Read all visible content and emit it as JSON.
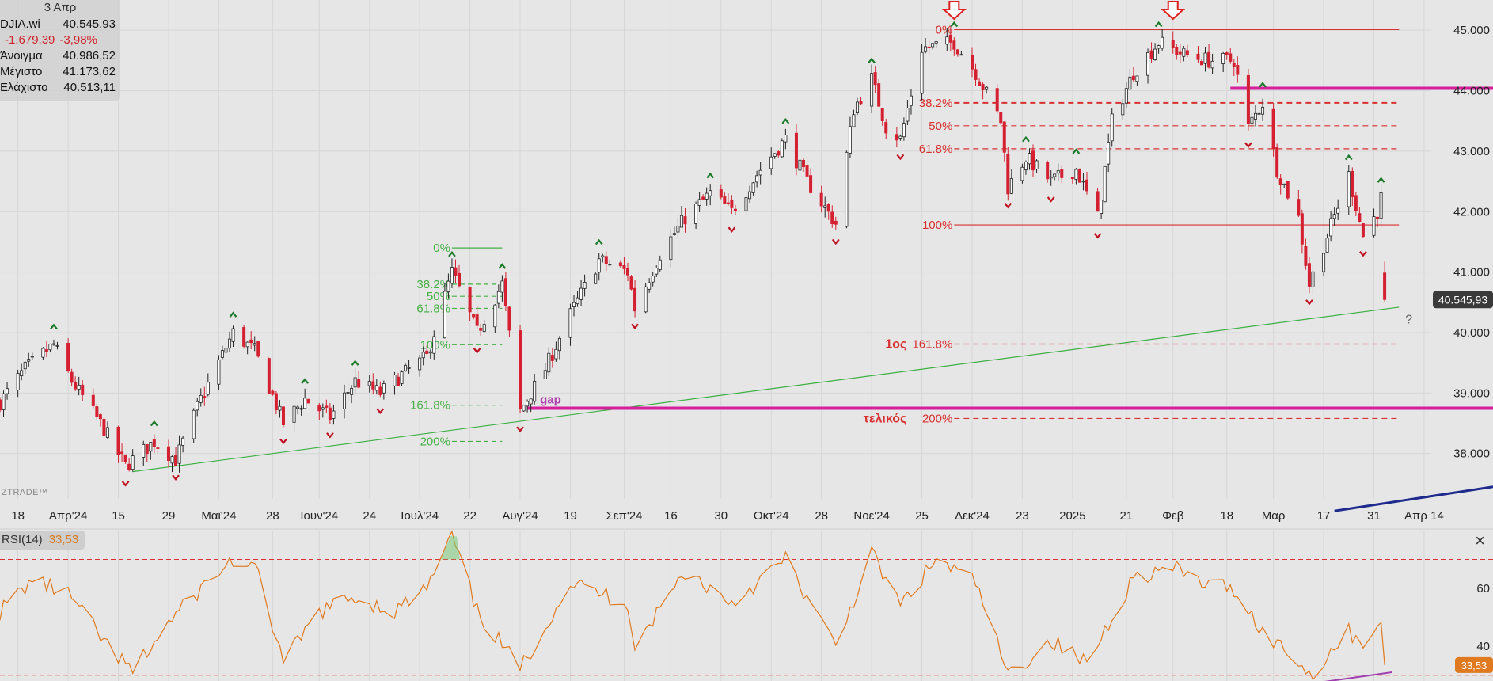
{
  "info_panel": {
    "date": "3 Απρ",
    "symbol": "DJIA.wi",
    "last": "40.545,93",
    "change": "-1.679,39",
    "change_pct": "-3,98%",
    "open_label": "Άνοιγμα",
    "open": "40.986,52",
    "high_label": "Μέγιστο",
    "high": "41.173,62",
    "low_label": "Ελάχιστο",
    "low": "40.513,11"
  },
  "watermark": "ZTRADE™",
  "rsi_panel": {
    "label": "RSI(14)",
    "value": "33,53",
    "close_icon": "×"
  },
  "colors": {
    "up": "#ffffff",
    "down": "#d42030",
    "fib_green": "#43b043",
    "fib_red": "#d93030",
    "magenta": "#d4209c",
    "trend_green": "#3cb043",
    "navy": "#1e2a8c",
    "rsi": "#e07a20"
  },
  "chart_data": [
    {
      "type": "candlestick",
      "title": "",
      "y_axis": {
        "min": 37250,
        "max": 45500,
        "ticks": [
          38000,
          39000,
          40000,
          41000,
          42000,
          43000,
          44000,
          45000
        ],
        "tick_labels": [
          "38.000",
          "39.000",
          "40.000",
          "41.000",
          "42.000",
          "43.000",
          "44.000",
          "45.000"
        ]
      },
      "x_axis": {
        "start": "2024-03-13",
        "end": "2025-04-16",
        "ticks": [
          {
            "date": "2024-03-18",
            "label": "18"
          },
          {
            "date": "2024-04-01",
            "label": "Απρ'24"
          },
          {
            "date": "2024-04-15",
            "label": "15"
          },
          {
            "date": "2024-04-29",
            "label": "29"
          },
          {
            "date": "2024-05-13",
            "label": "Μαϊ'24"
          },
          {
            "date": "2024-05-28",
            "label": "28"
          },
          {
            "date": "2024-06-10",
            "label": "Ιουν'24"
          },
          {
            "date": "2024-06-24",
            "label": "24"
          },
          {
            "date": "2024-07-08",
            "label": "Ιουλ'24"
          },
          {
            "date": "2024-07-22",
            "label": "22"
          },
          {
            "date": "2024-08-05",
            "label": "Αυγ'24"
          },
          {
            "date": "2024-08-19",
            "label": "19"
          },
          {
            "date": "2024-09-03",
            "label": "Σεπ'24"
          },
          {
            "date": "2024-09-16",
            "label": "16"
          },
          {
            "date": "2024-09-30",
            "label": "30"
          },
          {
            "date": "2024-10-14",
            "label": "Οκτ'24"
          },
          {
            "date": "2024-10-28",
            "label": "28"
          },
          {
            "date": "2024-11-11",
            "label": "Νοε'24"
          },
          {
            "date": "2024-11-25",
            "label": "25"
          },
          {
            "date": "2024-12-09",
            "label": "Δεκ'24"
          },
          {
            "date": "2024-12-23",
            "label": "23"
          },
          {
            "date": "2025-01-06",
            "label": "2025"
          },
          {
            "date": "2025-01-21",
            "label": "21"
          },
          {
            "date": "2025-02-03",
            "label": "Φεβ"
          },
          {
            "date": "2025-02-18",
            "label": "18"
          },
          {
            "date": "2025-03-03",
            "label": "Μαρ"
          },
          {
            "date": "2025-03-17",
            "label": "17"
          },
          {
            "date": "2025-03-31",
            "label": "31"
          },
          {
            "date": "2025-04-14",
            "label": "Απρ 14"
          }
        ]
      },
      "price_path": [
        [
          "2024-03-13",
          38850
        ],
        [
          "2024-03-20",
          39400
        ],
        [
          "2024-03-28",
          39800
        ],
        [
          "2024-04-02",
          39200
        ],
        [
          "2024-04-10",
          38500
        ],
        [
          "2024-04-17",
          37800
        ],
        [
          "2024-04-25",
          38200
        ],
        [
          "2024-05-01",
          37900
        ],
        [
          "2024-05-08",
          38900
        ],
        [
          "2024-05-17",
          40000
        ],
        [
          "2024-05-23",
          39700
        ],
        [
          "2024-05-31",
          38500
        ],
        [
          "2024-06-06",
          38900
        ],
        [
          "2024-06-13",
          38600
        ],
        [
          "2024-06-20",
          39200
        ],
        [
          "2024-06-27",
          39000
        ],
        [
          "2024-07-03",
          39300
        ],
        [
          "2024-07-10",
          39600
        ],
        [
          "2024-07-17",
          41000
        ],
        [
          "2024-07-24",
          40000
        ],
        [
          "2024-07-31",
          40800
        ],
        [
          "2024-08-05",
          38700
        ],
        [
          "2024-08-12",
          39400
        ],
        [
          "2024-08-19",
          40300
        ],
        [
          "2024-08-27",
          41200
        ],
        [
          "2024-09-04",
          41000
        ],
        [
          "2024-09-06",
          40400
        ],
        [
          "2024-09-13",
          41300
        ],
        [
          "2024-09-20",
          41900
        ],
        [
          "2024-09-27",
          42300
        ],
        [
          "2024-10-03",
          42000
        ],
        [
          "2024-10-11",
          42700
        ],
        [
          "2024-10-18",
          43200
        ],
        [
          "2024-10-24",
          42500
        ],
        [
          "2024-11-01",
          41800
        ],
        [
          "2024-11-06",
          43700
        ],
        [
          "2024-11-11",
          44200
        ],
        [
          "2024-11-15",
          43400
        ],
        [
          "2024-11-19",
          43200
        ],
        [
          "2024-11-25",
          44700
        ],
        [
          "2024-12-04",
          44800
        ],
        [
          "2024-12-10",
          44300
        ],
        [
          "2024-12-17",
          43500
        ],
        [
          "2024-12-19",
          42400
        ],
        [
          "2024-12-24",
          42900
        ],
        [
          "2024-12-31",
          42500
        ],
        [
          "2025-01-07",
          42700
        ],
        [
          "2025-01-13",
          41900
        ],
        [
          "2025-01-17",
          43500
        ],
        [
          "2025-01-23",
          44300
        ],
        [
          "2025-01-30",
          44800
        ],
        [
          "2025-02-06",
          44600
        ],
        [
          "2025-02-13",
          44500
        ],
        [
          "2025-02-20",
          44500
        ],
        [
          "2025-02-24",
          43400
        ],
        [
          "2025-02-28",
          43800
        ],
        [
          "2025-03-04",
          42700
        ],
        [
          "2025-03-10",
          41900
        ],
        [
          "2025-03-13",
          40800
        ],
        [
          "2025-03-18",
          41600
        ],
        [
          "2025-03-24",
          42600
        ],
        [
          "2025-03-28",
          41600
        ],
        [
          "2025-04-01",
          42000
        ],
        [
          "2025-04-02",
          42225
        ],
        [
          "2025-04-03",
          40546
        ]
      ],
      "last_price_tag": "40.545,93",
      "fib_green": {
        "anchors": {
          "start": "2024-07-17",
          "end": "2024-07-31"
        },
        "levels": [
          {
            "label": "0%",
            "price": 41400
          },
          {
            "label": "38.2%",
            "price": 40800
          },
          {
            "label": "50%",
            "price": 40600
          },
          {
            "label": "61.8%",
            "price": 40400
          },
          {
            "label": "100%",
            "price": 39800
          },
          {
            "label": "161.8%",
            "price": 38800
          },
          {
            "label": "200%",
            "price": 38200
          }
        ]
      },
      "fib_red": {
        "anchors": {
          "start": "2024-12-04",
          "end": "2025-04-07"
        },
        "levels": [
          {
            "label": "0%",
            "price": 45010
          },
          {
            "label": "38.2%",
            "price": 43800
          },
          {
            "label": "50%",
            "price": 43420
          },
          {
            "label": "61.8%",
            "price": 43040
          },
          {
            "label": "100%",
            "price": 41780
          },
          {
            "label": "161.8%",
            "price": 39810
          },
          {
            "label": "200%",
            "price": 38580
          }
        ],
        "targets": [
          {
            "price": 39810,
            "text": "1ος"
          },
          {
            "price": 38580,
            "text": "τελικός"
          }
        ]
      },
      "horizontal_lines": [
        {
          "price": 38750,
          "from": "2024-08-07",
          "label": "gap"
        },
        {
          "price": 44040,
          "from": "2025-02-19",
          "label": ""
        }
      ],
      "trendline_green": {
        "from": [
          "2024-04-19",
          37700
        ],
        "to": [
          "2025-04-07",
          40420
        ]
      },
      "trendline_navy": {
        "from": [
          "2025-03-20",
          37050
        ],
        "to": [
          "2025-04-16",
          37450
        ]
      },
      "arrows_top": [
        "2024-12-04",
        "2025-02-03"
      ],
      "question_mark": {
        "date": "2025-04-07",
        "price": 40150,
        "text": "?"
      }
    },
    {
      "type": "line",
      "title": "RSI(14)",
      "y_axis": {
        "min": 28,
        "max": 80,
        "ticks": [
          40,
          60
        ],
        "tick_labels": [
          "40",
          "60"
        ]
      },
      "overbought": 70,
      "oversold": 30,
      "last_value_tag": "33,53",
      "rsi_path": [
        [
          "2024-03-13",
          52
        ],
        [
          "2024-03-22",
          63
        ],
        [
          "2024-04-01",
          58
        ],
        [
          "2024-04-12",
          40
        ],
        [
          "2024-04-19",
          31
        ],
        [
          "2024-04-29",
          48
        ],
        [
          "2024-05-08",
          60
        ],
        [
          "2024-05-17",
          70
        ],
        [
          "2024-05-24",
          65
        ],
        [
          "2024-05-31",
          34
        ],
        [
          "2024-06-10",
          52
        ],
        [
          "2024-06-20",
          57
        ],
        [
          "2024-07-01",
          52
        ],
        [
          "2024-07-10",
          60
        ],
        [
          "2024-07-17",
          78
        ],
        [
          "2024-07-24",
          52
        ],
        [
          "2024-08-05",
          32
        ],
        [
          "2024-08-19",
          62
        ],
        [
          "2024-09-04",
          55
        ],
        [
          "2024-09-06",
          40
        ],
        [
          "2024-09-20",
          66
        ],
        [
          "2024-10-03",
          55
        ],
        [
          "2024-10-18",
          70
        ],
        [
          "2024-10-28",
          48
        ],
        [
          "2024-11-01",
          40
        ],
        [
          "2024-11-11",
          72
        ],
        [
          "2024-11-19",
          54
        ],
        [
          "2024-11-29",
          70
        ],
        [
          "2024-12-10",
          62
        ],
        [
          "2024-12-19",
          30
        ],
        [
          "2024-12-31",
          42
        ],
        [
          "2025-01-10",
          34
        ],
        [
          "2025-01-23",
          64
        ],
        [
          "2025-02-03",
          67
        ],
        [
          "2025-02-13",
          61
        ],
        [
          "2025-02-20",
          60
        ],
        [
          "2025-02-28",
          45
        ],
        [
          "2025-03-10",
          35
        ],
        [
          "2025-03-13",
          30
        ],
        [
          "2025-03-24",
          45
        ],
        [
          "2025-03-28",
          42
        ],
        [
          "2025-04-02",
          46
        ],
        [
          "2025-04-03",
          33.5
        ]
      ],
      "divergence_line": {
        "from": [
          "2025-03-13",
          27
        ],
        "to": [
          "2025-04-05",
          31
        ]
      }
    }
  ]
}
